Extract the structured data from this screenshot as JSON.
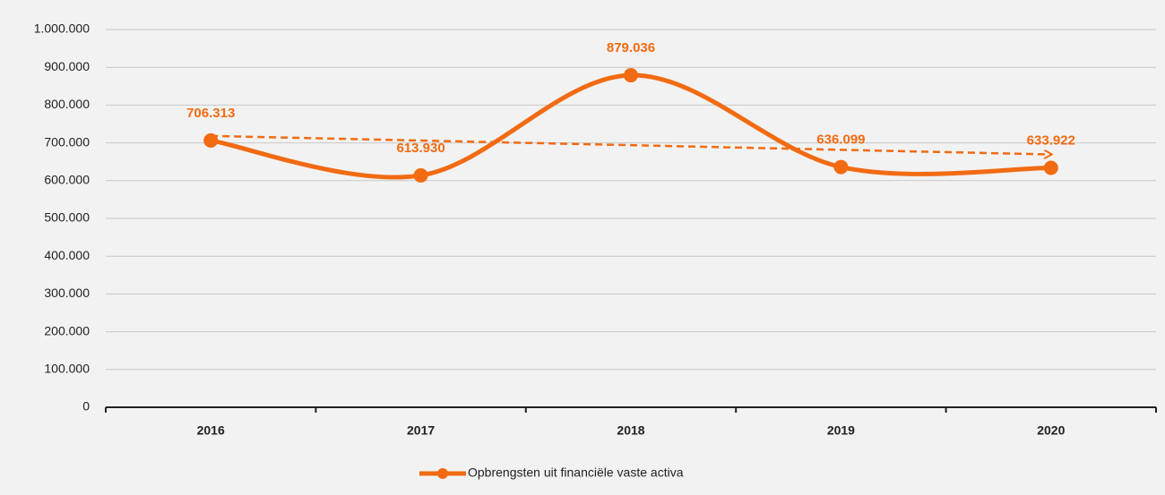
{
  "chart_data": {
    "type": "line",
    "categories": [
      "2016",
      "2017",
      "2018",
      "2019",
      "2020"
    ],
    "series": [
      {
        "name": "Opbrengsten uit financiële vaste activa",
        "color": "#f26b12",
        "values": [
          706313,
          613930,
          879036,
          636099,
          633922
        ],
        "value_labels": [
          "706.313",
          "613.930",
          "879.036",
          "636.099",
          "633.922"
        ]
      }
    ],
    "ylim": [
      0,
      1000000
    ],
    "yticks": [
      0,
      {
        "value": 100000,
        "label": "100.000"
      },
      {
        "value": 200000,
        "label": "200.000"
      },
      {
        "value": 300000,
        "label": "300.000"
      },
      {
        "value": 400000,
        "label": "400.000"
      },
      {
        "value": 500000,
        "label": "500.000"
      },
      {
        "value": 600000,
        "label": "600.000"
      },
      {
        "value": 700000,
        "label": "700.000"
      },
      {
        "value": 800000,
        "label": "800.000"
      },
      {
        "value": 900000,
        "label": "900.000"
      },
      {
        "value": 1000000,
        "label": "1.000.000"
      }
    ],
    "grid": true,
    "smooth": true,
    "trendline": true,
    "legend": "bottom"
  }
}
